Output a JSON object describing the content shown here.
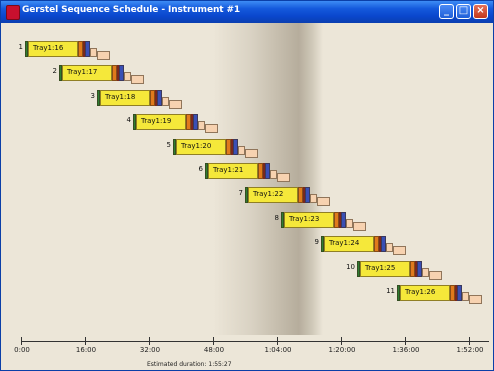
{
  "window": {
    "title": "Gerstel Sequence Schedule - Instrument #1",
    "controls": [
      "minimize",
      "maximize",
      "close"
    ]
  },
  "chart_data": {
    "type": "gantt",
    "x_unit": "h:mm",
    "xlim": [
      "0:00",
      "1:57:00"
    ],
    "tick_labels": [
      "0:00",
      "16:00",
      "32:00",
      "48:00",
      "1:04:00",
      "1:20:00",
      "1:36:00",
      "1:52:00"
    ],
    "estimated_duration": "Estimated duration: 1:55:27",
    "rows": [
      {
        "n": "1",
        "label": "Tray1:16",
        "start_min": 1.0
      },
      {
        "n": "2",
        "label": "Tray1:17",
        "start_min": 9.5
      },
      {
        "n": "3",
        "label": "Tray1:18",
        "start_min": 19.0
      },
      {
        "n": "4",
        "label": "Tray1:19",
        "start_min": 28.0
      },
      {
        "n": "5",
        "label": "Tray1:20",
        "start_min": 38.0
      },
      {
        "n": "6",
        "label": "Tray1:21",
        "start_min": 46.0
      },
      {
        "n": "7",
        "label": "Tray1:22",
        "start_min": 56.0
      },
      {
        "n": "8",
        "label": "Tray1:23",
        "start_min": 65.0
      },
      {
        "n": "9",
        "label": "Tray1:24",
        "start_min": 75.0
      },
      {
        "n": "10",
        "label": "Tray1:25",
        "start_min": 84.0
      },
      {
        "n": "11",
        "label": "Tray1:26",
        "start_min": 94.0
      }
    ],
    "phase_colors": {
      "start": "#2e7d32",
      "main": "#f5e83a",
      "orange": "#e07a1c",
      "red": "#c62828",
      "blue": "#3a4fb5",
      "peach": "#f7d2b0"
    }
  }
}
